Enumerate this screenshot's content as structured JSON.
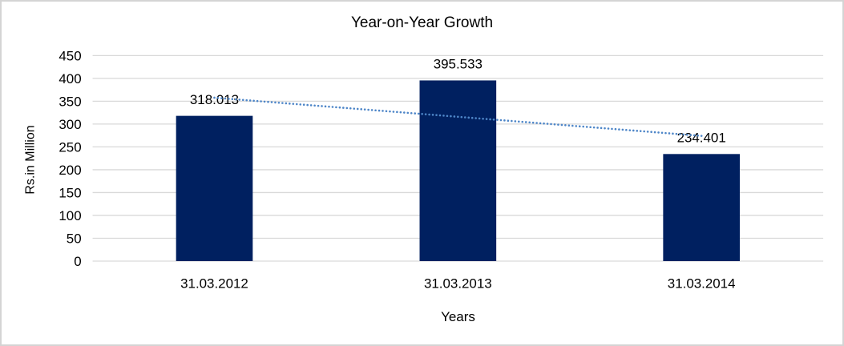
{
  "chart_data": {
    "type": "bar",
    "title": "Year-on-Year Growth",
    "xlabel": "Years",
    "ylabel": "Rs.in Million",
    "categories": [
      "31.03.2012",
      "31.03.2013",
      "31.03.2014"
    ],
    "values": [
      318.013,
      395.533,
      234.401
    ],
    "data_labels": [
      "318.013",
      "395.533",
      "234.401"
    ],
    "yticks": [
      0,
      50,
      100,
      150,
      200,
      250,
      300,
      350,
      400,
      450
    ],
    "ylim": [
      0,
      450
    ],
    "grid": "horizontal-only",
    "legend": "none",
    "bar_color": "#002060",
    "gridline_color": "#d9d9d9",
    "text_color": "#000000",
    "border_color": "#d4d4d4",
    "trendline": {
      "type": "linear",
      "style": "dotted",
      "color": "#4e86c8",
      "start_value": 357.8,
      "end_value": 274.2
    }
  }
}
